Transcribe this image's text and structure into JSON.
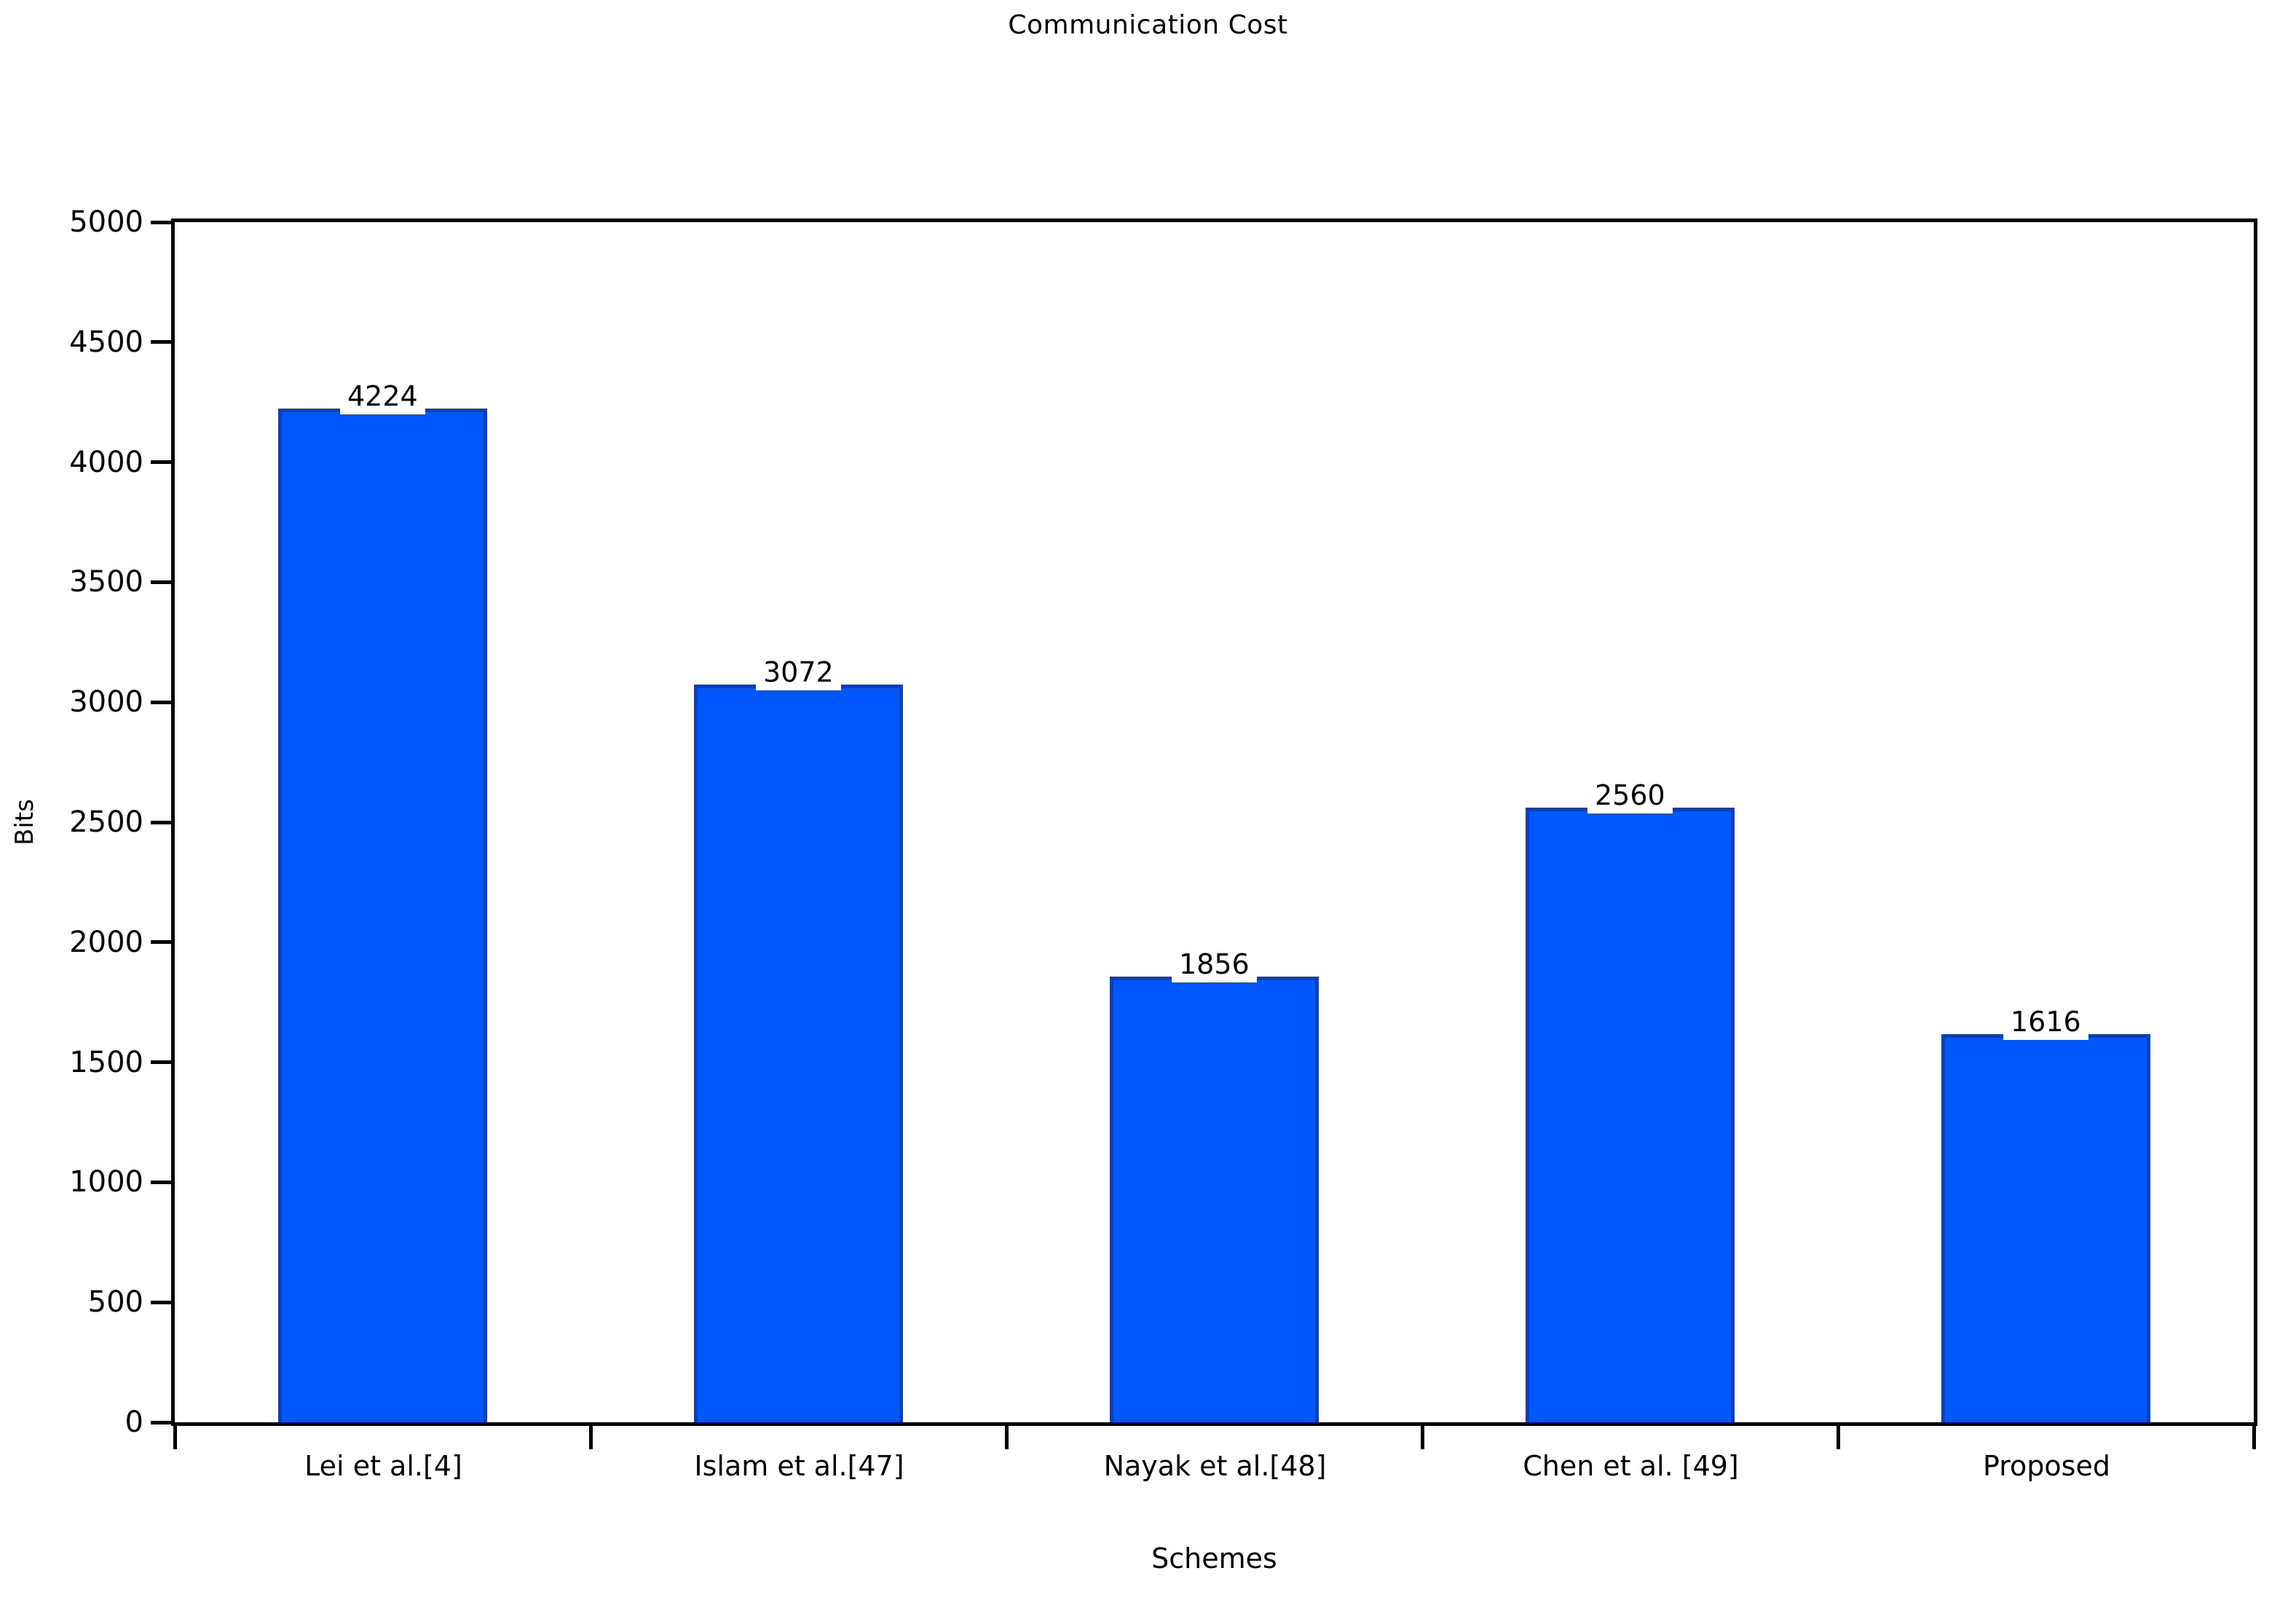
{
  "chart_data": {
    "type": "bar",
    "title": "Communication Cost",
    "xlabel": "Schemes",
    "ylabel": "Bits",
    "categories": [
      "Lei et al.[4]",
      "Islam et al.[47]",
      "Nayak et al.[48]",
      "Chen et al. [49]",
      "Proposed"
    ],
    "values": [
      4224,
      3072,
      1856,
      2560,
      1616
    ],
    "value_labels": [
      "4224",
      "3072",
      "1856",
      "2560",
      "1616"
    ],
    "ylim": [
      0,
      5000
    ],
    "ytick_step": 500,
    "ytick_labels": [
      "0",
      "500",
      "1000",
      "1500",
      "2000",
      "2500",
      "3000",
      "3500",
      "4000",
      "4500",
      "5000"
    ],
    "grid": "off",
    "legend_position": "none",
    "colors": {
      "bar_fill": "#0057fb",
      "bar_border": "#0a3fbf",
      "axis": "#000000",
      "text": "#000000",
      "background": "#ffffff"
    }
  }
}
